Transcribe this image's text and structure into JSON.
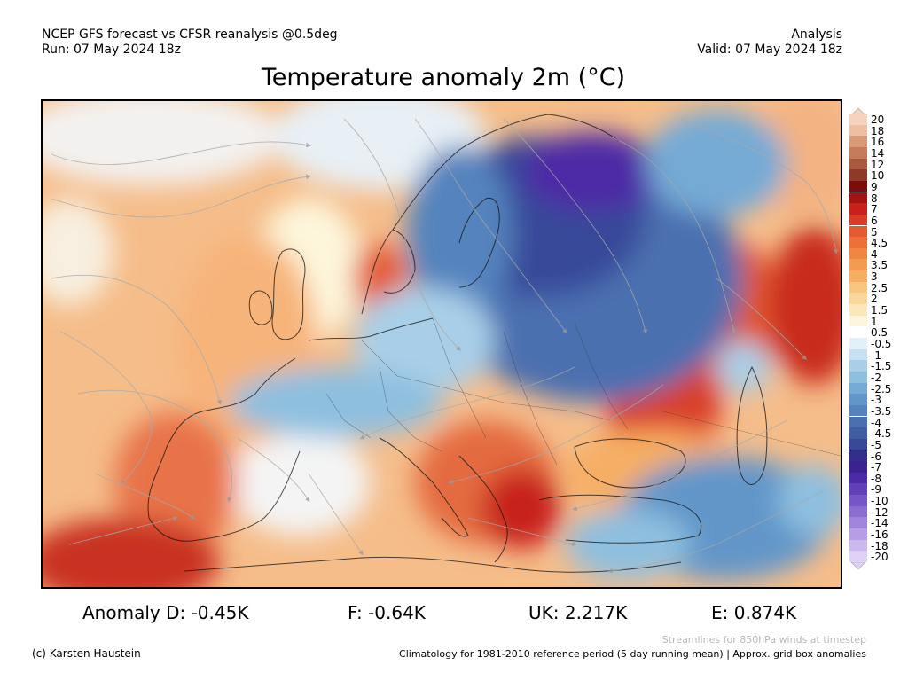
{
  "header": {
    "line1_left": "NCEP GFS forecast vs CFSR reanalysis @0.5deg",
    "line2_left": "Run: 07 May 2024 18z",
    "line1_right": "Analysis",
    "line2_right": "Valid: 07 May 2024 18z"
  },
  "title": "Temperature anomaly 2m (°C)",
  "colorbar": {
    "labels": [
      "20",
      "18",
      "16",
      "14",
      "12",
      "10",
      "9",
      "8",
      "7",
      "6",
      "5",
      "4.5",
      "4",
      "3.5",
      "3",
      "2.5",
      "2",
      "1.5",
      "1",
      "0.5",
      "-0.5",
      "-1",
      "-1.5",
      "-2",
      "-2.5",
      "-3",
      "-3.5",
      "-4",
      "-4.5",
      "-5",
      "-6",
      "-7",
      "-8",
      "-9",
      "-10",
      "-12",
      "-14",
      "-16",
      "-18",
      "-20"
    ],
    "colors": [
      "#f7d3bd",
      "#efbfa2",
      "#d99a78",
      "#c37b5b",
      "#a9593f",
      "#8d3a26",
      "#7d0d0d",
      "#a51212",
      "#c8201b",
      "#db3a26",
      "#e65a32",
      "#ec7038",
      "#f08642",
      "#f39b52",
      "#f6ae63",
      "#f8c47e",
      "#fad69a",
      "#fbe7bb",
      "#fdf6dc",
      "#ffffff",
      "#e3f0f9",
      "#c6e0f1",
      "#a9cfe8",
      "#8ebfdf",
      "#75aad5",
      "#6296c9",
      "#5583bd",
      "#4b70b0",
      "#415ea3",
      "#38499a",
      "#322f8a",
      "#3a2290",
      "#4e2ba6",
      "#6141b7",
      "#7656c6",
      "#8b6cd1",
      "#a084dc",
      "#b69ee6",
      "#cbb8ee",
      "#e0d2f6"
    ]
  },
  "anomalies": {
    "d": "Anomaly D: -0.45K",
    "f": "F: -0.64K",
    "uk": "UK: 2.217K",
    "e": "E: 0.874K"
  },
  "footer": {
    "streamlines": "Streamlines for 850hPa winds at timestep",
    "credit": "(c) Karsten Haustein",
    "climatology": "Climatology for 1981-2010 reference period (5 day running mean) | Approx. grid box anomalies"
  }
}
